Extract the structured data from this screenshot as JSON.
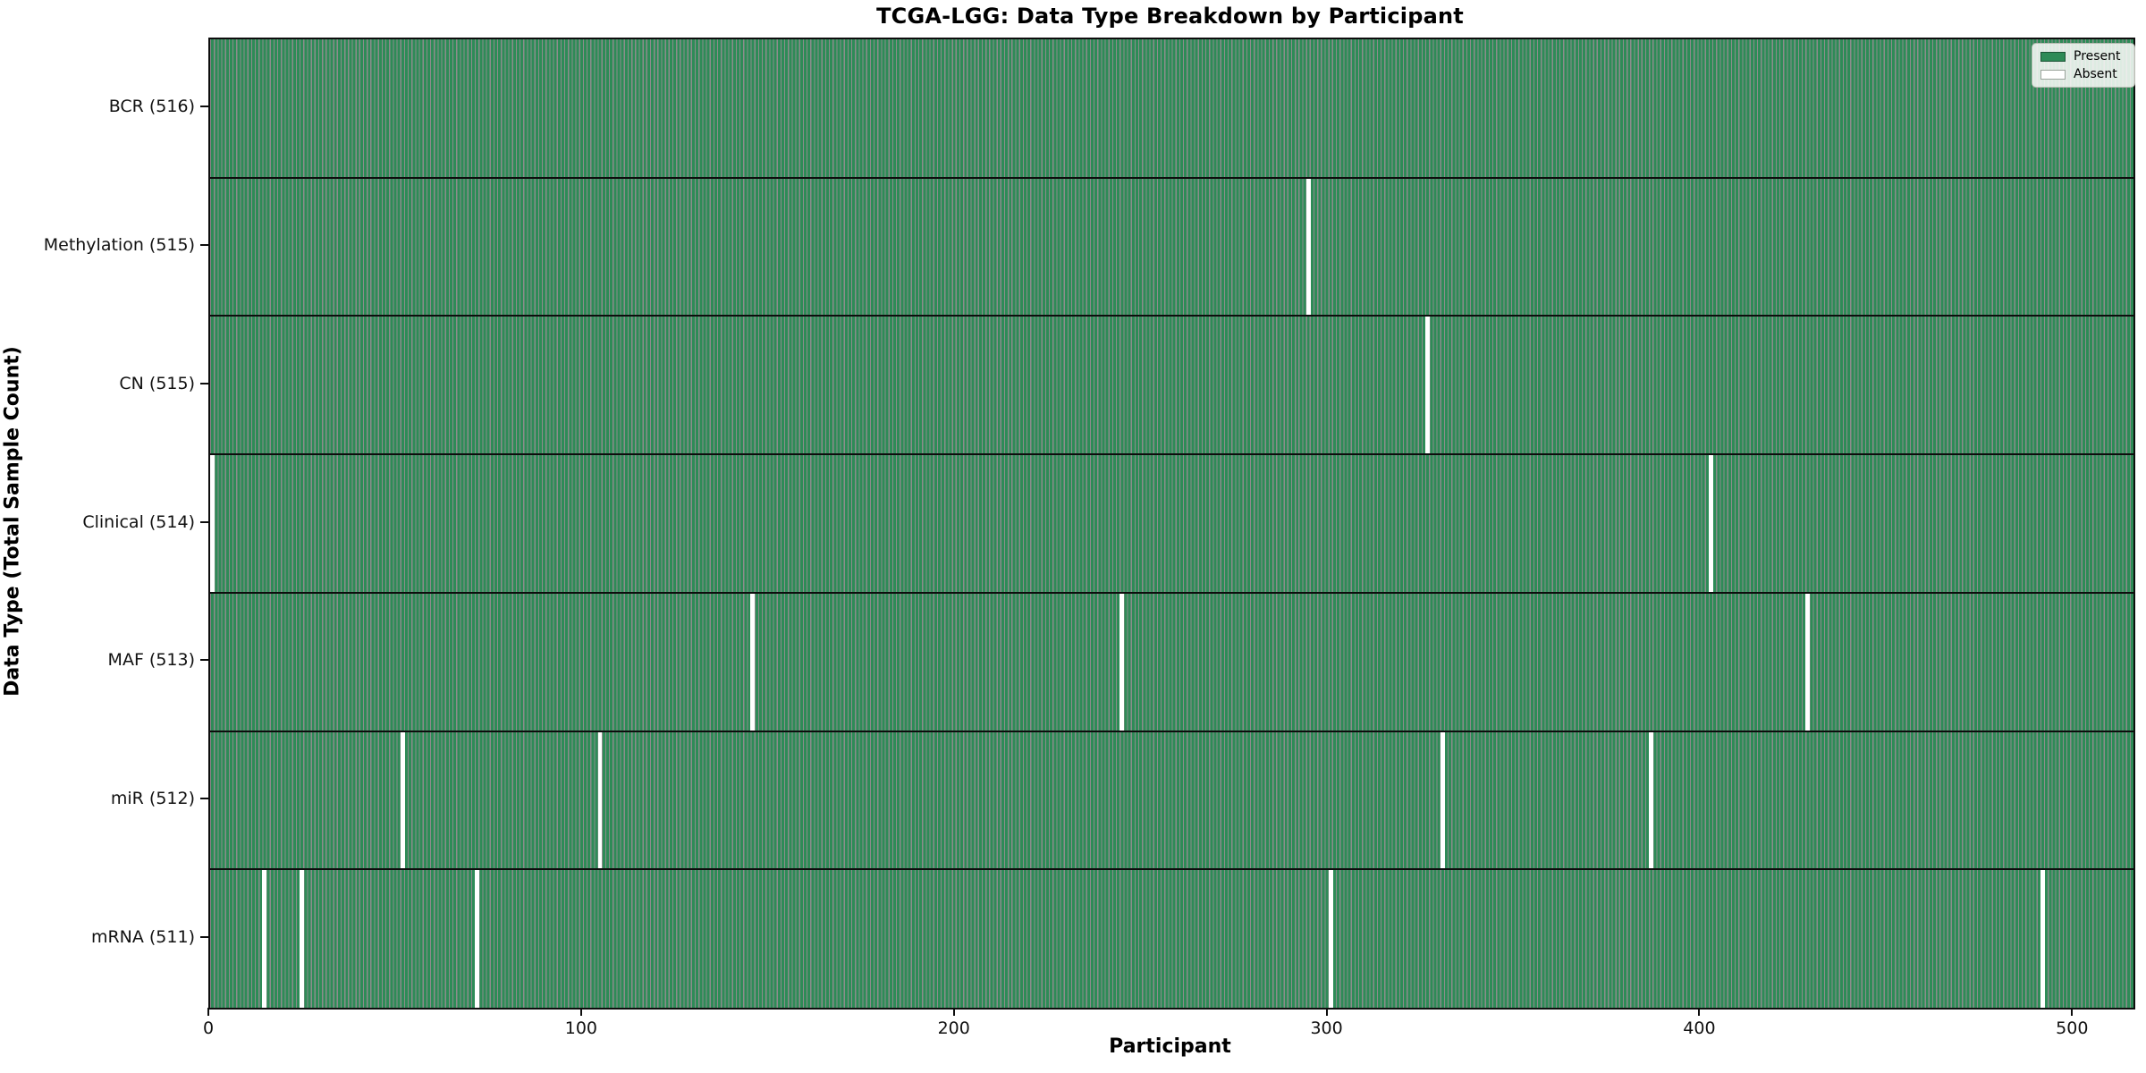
{
  "figure": {
    "title": "TCGA-LGG: Data Type Breakdown by Participant",
    "x_axis_label": "Participant",
    "y_axis_label": "Data Type (Total Sample Count)"
  },
  "legend": {
    "entries": [
      {
        "label": "Present",
        "color": "#2e8b57"
      },
      {
        "label": "Absent",
        "color": "#ffffff"
      }
    ],
    "position": "upper right"
  },
  "chart_data": {
    "type": "heatmap",
    "title": "TCGA-LGG: Data Type Breakdown by Participant",
    "xlabel": "Participant",
    "ylabel": "Data Type (Total Sample Count)",
    "n_participants": 516,
    "xlim": [
      0,
      516
    ],
    "x_ticks": [
      0,
      100,
      200,
      300,
      400,
      500
    ],
    "grid": false,
    "legend_entries": [
      "Present",
      "Absent"
    ],
    "colors": {
      "present": "#2e8b57",
      "absent": "#ffffff",
      "cell_edge": "rgba(0,0,0,0.45)",
      "row_separator": "#0d0d0d"
    },
    "rows": [
      {
        "label": "BCR (516)",
        "total": 516,
        "absent_participants": []
      },
      {
        "label": "Methylation (515)",
        "total": 515,
        "absent_participants": [
          294
        ]
      },
      {
        "label": "CN (515)",
        "total": 515,
        "absent_participants": [
          326
        ]
      },
      {
        "label": "Clinical (514)",
        "total": 514,
        "absent_participants": [
          0,
          402
        ]
      },
      {
        "label": "MAF (513)",
        "total": 513,
        "absent_participants": [
          145,
          244,
          428
        ]
      },
      {
        "label": "miR (512)",
        "total": 512,
        "absent_participants": [
          51,
          104,
          330,
          386
        ]
      },
      {
        "label": "mRNA (511)",
        "total": 511,
        "absent_participants": [
          14,
          24,
          71,
          300,
          491
        ]
      }
    ]
  }
}
